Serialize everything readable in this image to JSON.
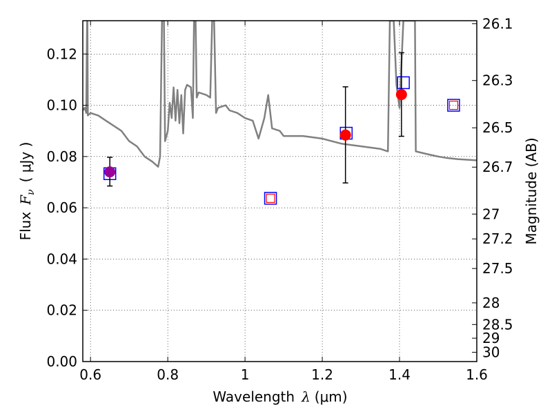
{
  "chart_data": {
    "type": "scatter",
    "xlabel": "Wavelength",
    "xlabel_symbol": "λ",
    "xlabel_unit": "(μm)",
    "ylabel": "Flux",
    "ylabel_symbol": "F",
    "ylabel_symbol_sub": "ν",
    "ylabel_unit": "( μJy )",
    "y2label": "Magnitude (AB)",
    "xlim": [
      0.58,
      1.6
    ],
    "ylim": [
      0.0,
      0.133
    ],
    "xticks": [
      0.6,
      0.8,
      1.0,
      1.2,
      1.4,
      1.6
    ],
    "xtick_labels": [
      "0.6",
      "0.8",
      "1",
      "1.2",
      "1.4",
      "1.6"
    ],
    "yticks": [
      0.0,
      0.02,
      0.04,
      0.06,
      0.08,
      0.1,
      0.12
    ],
    "ytick_labels": [
      "0.00",
      "0.02",
      "0.04",
      "0.06",
      "0.08",
      "0.10",
      "0.12"
    ],
    "y2ticks": [
      26.1,
      26.3,
      26.5,
      26.7,
      27,
      27.2,
      27.5,
      28,
      28.5,
      29,
      30
    ],
    "y2tick_labels": [
      "26.1",
      "26.3",
      "26.5",
      "26.7",
      "27",
      "27.2",
      "27.5",
      "28",
      "28.5",
      "29",
      "30"
    ],
    "grid": true,
    "series": [
      {
        "kind": "line",
        "color": "#808080",
        "points": [
          [
            0.58,
            0.098
          ],
          [
            0.585,
            0.099
          ],
          [
            0.589,
            0.097
          ],
          [
            0.591,
            0.133
          ],
          [
            0.592,
            0.133
          ],
          [
            0.593,
            0.096
          ],
          [
            0.6,
            0.097
          ],
          [
            0.62,
            0.096
          ],
          [
            0.64,
            0.094
          ],
          [
            0.66,
            0.092
          ],
          [
            0.68,
            0.09
          ],
          [
            0.7,
            0.086
          ],
          [
            0.72,
            0.084
          ],
          [
            0.74,
            0.08
          ],
          [
            0.76,
            0.078
          ],
          [
            0.775,
            0.076
          ],
          [
            0.78,
            0.08
          ],
          [
            0.785,
            0.133
          ],
          [
            0.79,
            0.133
          ],
          [
            0.793,
            0.086
          ],
          [
            0.8,
            0.09
          ],
          [
            0.805,
            0.101
          ],
          [
            0.81,
            0.095
          ],
          [
            0.815,
            0.107
          ],
          [
            0.82,
            0.094
          ],
          [
            0.825,
            0.106
          ],
          [
            0.83,
            0.093
          ],
          [
            0.835,
            0.104
          ],
          [
            0.84,
            0.089
          ],
          [
            0.845,
            0.106
          ],
          [
            0.85,
            0.108
          ],
          [
            0.86,
            0.107
          ],
          [
            0.865,
            0.095
          ],
          [
            0.868,
            0.133
          ],
          [
            0.872,
            0.133
          ],
          [
            0.875,
            0.103
          ],
          [
            0.88,
            0.105
          ],
          [
            0.9,
            0.104
          ],
          [
            0.91,
            0.103
          ],
          [
            0.915,
            0.133
          ],
          [
            0.92,
            0.133
          ],
          [
            0.925,
            0.097
          ],
          [
            0.93,
            0.099
          ],
          [
            0.95,
            0.1
          ],
          [
            0.96,
            0.098
          ],
          [
            0.98,
            0.097
          ],
          [
            1.0,
            0.095
          ],
          [
            1.02,
            0.094
          ],
          [
            1.035,
            0.087
          ],
          [
            1.05,
            0.095
          ],
          [
            1.06,
            0.104
          ],
          [
            1.07,
            0.091
          ],
          [
            1.09,
            0.09
          ],
          [
            1.1,
            0.088
          ],
          [
            1.15,
            0.088
          ],
          [
            1.2,
            0.087
          ],
          [
            1.25,
            0.085
          ],
          [
            1.3,
            0.084
          ],
          [
            1.35,
            0.083
          ],
          [
            1.37,
            0.082
          ],
          [
            1.375,
            0.133
          ],
          [
            1.385,
            0.133
          ],
          [
            1.392,
            0.108
          ],
          [
            1.4,
            0.099
          ],
          [
            1.41,
            0.133
          ],
          [
            1.44,
            0.133
          ],
          [
            1.442,
            0.082
          ],
          [
            1.47,
            0.081
          ],
          [
            1.5,
            0.08
          ],
          [
            1.52,
            0.0795
          ],
          [
            1.55,
            0.079
          ],
          [
            1.6,
            0.0785
          ]
        ]
      },
      {
        "kind": "model-squares",
        "color": "#0000ff",
        "points": [
          [
            0.65,
            0.0733
          ],
          [
            1.066,
            0.0637
          ],
          [
            1.262,
            0.0891
          ],
          [
            1.41,
            0.1088
          ],
          [
            1.54,
            0.1
          ]
        ]
      },
      {
        "kind": "observed-squares",
        "color": "#ff0000",
        "points": [
          [
            1.066,
            0.0637
          ],
          [
            1.54,
            0.1
          ]
        ]
      },
      {
        "kind": "detections",
        "color": "#ff0000",
        "points": [
          {
            "x": 0.65,
            "y": 0.074,
            "err_low": 0.0685,
            "err_high": 0.0797,
            "color": "#990099"
          },
          {
            "x": 1.26,
            "y": 0.0884,
            "err_low": 0.0697,
            "err_high": 0.1072,
            "color": "#ff0000"
          },
          {
            "x": 1.405,
            "y": 0.1042,
            "err_low": 0.0879,
            "err_high": 0.1205,
            "color": "#ff0000"
          }
        ]
      }
    ]
  }
}
